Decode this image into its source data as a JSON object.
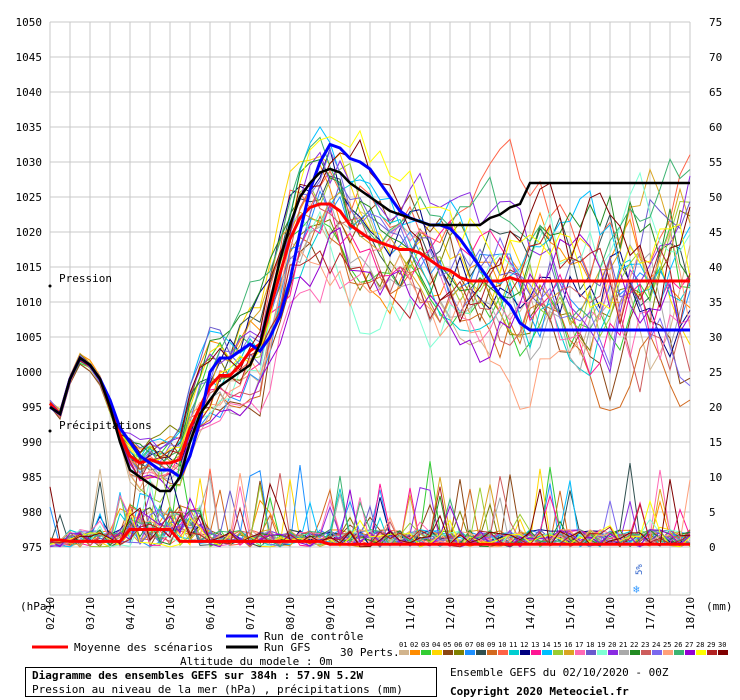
{
  "chart_data": {
    "type": "line",
    "title": "Diagramme des ensembles GEFS sur 384h : 57.9N 5.2W",
    "subtitle": "Pression au niveau de la mer (hPa) , précipitations (mm)",
    "left_axis": {
      "unit": "(hPa)",
      "min": 975,
      "max": 1050,
      "ticks": [
        1050,
        1045,
        1040,
        1035,
        1030,
        1025,
        1020,
        1015,
        1010,
        1005,
        1000,
        995,
        990,
        985,
        980,
        975
      ]
    },
    "right_axis": {
      "unit": "(mm)",
      "min": 0,
      "max": 75,
      "ticks": [
        75,
        70,
        65,
        60,
        55,
        50,
        45,
        40,
        35,
        30,
        25,
        20,
        15,
        10,
        5,
        0
      ]
    },
    "x_ticks": [
      "02/10",
      "03/10",
      "04/10",
      "05/10",
      "06/10",
      "07/10",
      "08/10",
      "09/10",
      "10/10",
      "11/10",
      "12/10",
      "13/10",
      "14/10",
      "15/10",
      "16/10",
      "17/10",
      "18/10"
    ],
    "panel_labels": {
      "pressure": "Pression",
      "precip": "Précipitations"
    },
    "snow_marker": {
      "label": "5%",
      "date": "16/10"
    },
    "grid": true,
    "series": [
      {
        "name": "Moyenne des scénarios",
        "color": "#ff0000",
        "x": [
          0,
          0.25,
          0.5,
          0.75,
          1,
          1.25,
          1.5,
          1.75,
          2,
          2.25,
          2.5,
          2.75,
          3,
          3.25,
          3.5,
          3.75,
          4,
          4.25,
          4.5,
          4.75,
          5,
          5.25,
          5.5,
          5.75,
          6,
          6.25,
          6.5,
          6.75,
          7,
          7.25,
          7.5,
          7.75,
          8,
          8.25,
          8.5,
          8.75,
          9,
          9.25,
          9.5,
          9.75,
          10,
          10.25,
          10.5,
          10.75,
          11,
          11.25,
          11.5,
          11.75,
          12,
          12.25,
          12.5,
          12.75,
          13,
          13.25,
          13.5,
          13.75,
          14,
          14.25,
          14.5,
          14.75,
          15,
          15.25,
          15.5,
          15.75,
          16
        ],
        "values": [
          995.5,
          994,
          999,
          1002,
          1001,
          999,
          995,
          991,
          988,
          987,
          987.5,
          987,
          987,
          987.5,
          992,
          995,
          998,
          999.5,
          999.5,
          1001,
          1003,
          1004,
          1009,
          1014,
          1019,
          1022,
          1023.5,
          1024,
          1024,
          1023,
          1021,
          1020,
          1019,
          1018.5,
          1018,
          1017.5,
          1017.5,
          1017,
          1016,
          1015,
          1014.5,
          1013.5,
          1013,
          1013,
          1013,
          1013,
          1013.5,
          1013,
          1013,
          1013,
          1013,
          1013,
          1013,
          1013,
          1013,
          1013,
          1013,
          1013,
          1013,
          1013,
          1013,
          1013,
          1013,
          1013,
          1013
        ]
      },
      {
        "name": "Run de contrôle",
        "color": "#0000ff",
        "x": [
          0,
          0.25,
          0.5,
          0.75,
          1,
          1.25,
          1.5,
          1.75,
          2,
          2.25,
          2.5,
          2.75,
          3,
          3.25,
          3.5,
          3.75,
          4,
          4.25,
          4.5,
          4.75,
          5,
          5.25,
          5.5,
          5.75,
          6,
          6.25,
          6.5,
          6.75,
          7,
          7.25,
          7.5,
          7.75,
          8,
          8.25,
          8.5,
          8.75,
          9,
          9.25,
          9.5,
          9.75,
          10,
          10.25,
          10.5,
          10.75,
          11,
          11.25,
          11.5,
          11.75,
          12,
          12.25,
          12.5,
          12.75,
          13,
          13.25,
          13.5,
          13.75,
          14,
          14.25,
          14.5,
          14.75,
          15,
          15.25,
          15.5,
          15.75,
          16
        ],
        "values": [
          995,
          994,
          999,
          1002,
          1001,
          999,
          996,
          992,
          990,
          988,
          987,
          986,
          986,
          985,
          988,
          993,
          1000,
          1002,
          1002,
          1003,
          1004,
          1003,
          1005,
          1008,
          1013,
          1020,
          1026,
          1030,
          1032.5,
          1032,
          1030.5,
          1030,
          1029,
          1027,
          1025,
          1023,
          1022,
          1021.5,
          1021,
          1021,
          1020.5,
          1019,
          1017,
          1015,
          1013,
          1011,
          1009.5,
          1007,
          1006,
          1006,
          1006,
          1006,
          1006,
          1006,
          1006,
          1006,
          1006,
          1006,
          1006,
          1006,
          1006,
          1006,
          1006,
          1006,
          1006
        ]
      },
      {
        "name": "Run GFS",
        "color": "#000000",
        "x": [
          0,
          0.25,
          0.5,
          0.75,
          1,
          1.25,
          1.5,
          1.75,
          2,
          2.25,
          2.5,
          2.75,
          3,
          3.25,
          3.5,
          3.75,
          4,
          4.25,
          4.5,
          4.75,
          5,
          5.25,
          5.5,
          5.75,
          6,
          6.25,
          6.5,
          6.75,
          7,
          7.25,
          7.5,
          7.75,
          8,
          8.25,
          8.5,
          8.75,
          9,
          9.25,
          9.5,
          9.75,
          10,
          10.25,
          10.5,
          10.75,
          11,
          11.25,
          11.5,
          11.75,
          12,
          12.25,
          12.5,
          12.75,
          13,
          13.25,
          13.5,
          13.75,
          14,
          14.25,
          14.5,
          14.75,
          15,
          15.25,
          15.5,
          15.75,
          16
        ],
        "values": [
          995,
          994,
          999,
          1002,
          1001,
          999,
          995,
          990,
          986,
          985,
          984,
          983,
          983,
          985,
          990,
          994,
          996,
          998,
          999,
          1000,
          1001,
          1004,
          1010,
          1016,
          1021,
          1025,
          1027,
          1028.5,
          1029,
          1028.5,
          1027,
          1026,
          1025,
          1024,
          1023,
          1022.5,
          1022,
          1021.5,
          1021,
          1021,
          1021,
          1021,
          1021,
          1021,
          1022,
          1022.5,
          1023.5,
          1024,
          1027,
          1027,
          1027,
          1027,
          1027,
          1027,
          1027,
          1027,
          1027,
          1027,
          1027,
          1027,
          1027,
          1027,
          1027,
          1027,
          1027
        ]
      }
    ]
  },
  "legend": {
    "mean_label": "Moyenne des scénarios",
    "control_label": "Run de contrôle",
    "gfs_label": "Run GFS",
    "perts_label": "30 Perts.",
    "pert_numbers": [
      "01",
      "02",
      "03",
      "04",
      "05",
      "06",
      "07",
      "08",
      "09",
      "10",
      "11",
      "12",
      "13",
      "14",
      "15",
      "16",
      "17",
      "18",
      "19",
      "20",
      "21",
      "22",
      "23",
      "24",
      "25",
      "26",
      "27",
      "28",
      "29",
      "30"
    ],
    "pert_colors": [
      "#d2b48c",
      "#ff8c00",
      "#32cd32",
      "#ffd700",
      "#8b4513",
      "#808000",
      "#1e90ff",
      "#2f4f4f",
      "#d2691e",
      "#ff6347",
      "#00ced1",
      "#000080",
      "#ff1493",
      "#00bfff",
      "#9acd32",
      "#daa520",
      "#ff69b4",
      "#6a5acd",
      "#7fffd4",
      "#8a2be2",
      "#a9a9a9",
      "#228b22",
      "#cd5c5c",
      "#7b68ee",
      "#ffa07a",
      "#3cb371",
      "#9400d3",
      "#ffff00",
      "#b22222",
      "#800000"
    ]
  },
  "footer": {
    "altitude": "Altitude du modele : 0m",
    "run_info": "Ensemble GEFS du 02/10/2020 - 00Z",
    "copyright": "Copyright 2020 Meteociel.fr"
  }
}
